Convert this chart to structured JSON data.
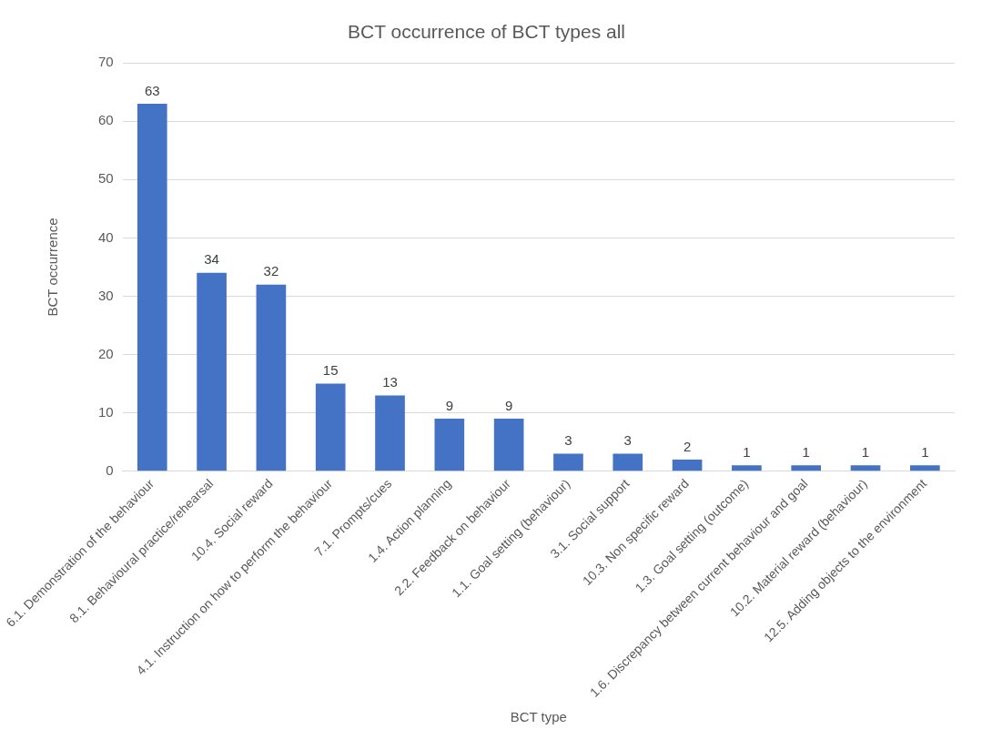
{
  "chart_data": {
    "type": "bar",
    "title": "BCT occurrence of BCT types all",
    "xlabel": "BCT type",
    "ylabel": "BCT occurrence",
    "categories": [
      "6.1. Demonstration of the behaviour",
      "8.1. Behavioural practice/rehearsal",
      "10.4. Social reward",
      "4.1. Instruction on how to perform the behaviour",
      "7.1. Prompts/cues",
      "1.4. Action planning",
      "2.2. Feedback on behaviour",
      "1.1. Goal setting (behaviour)",
      "3.1. Social support",
      "10.3. Non specific reward",
      "1.3. Goal setting (outcome)",
      "1.6. Discrepancy between current behaviour and goal",
      "10.2. Material reward (behaviour)",
      "12.5. Adding objects to the environment"
    ],
    "values": [
      63,
      34,
      32,
      15,
      13,
      9,
      9,
      3,
      3,
      2,
      1,
      1,
      1,
      1
    ],
    "color": "#4472c4",
    "ylim": [
      0,
      70
    ],
    "yticks": [
      0,
      10,
      20,
      30,
      40,
      50,
      60,
      70
    ],
    "grid": "y",
    "data_labels": true,
    "legend": false
  }
}
